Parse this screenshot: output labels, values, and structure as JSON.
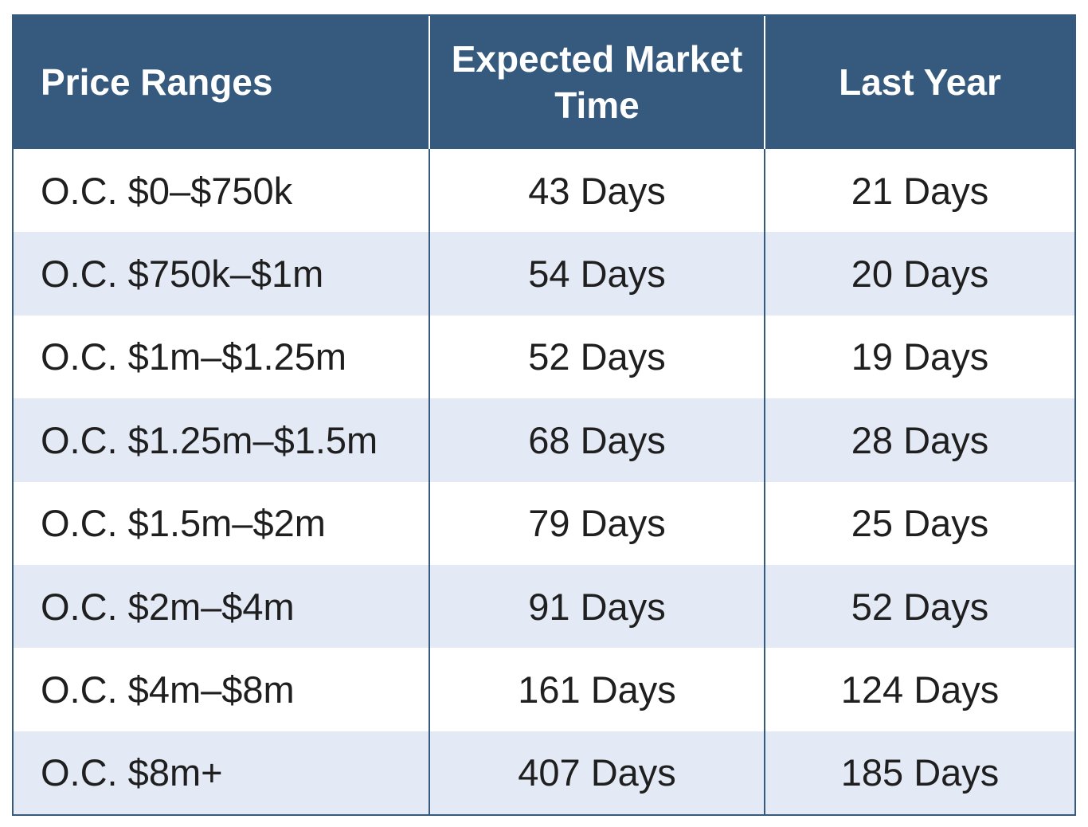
{
  "colors": {
    "header_bg": "#355a7e",
    "header_text": "#ffffff",
    "row_alt_bg": "#e3e9f5",
    "row_bg": "#ffffff",
    "border": "#355a7e"
  },
  "chart_data": {
    "type": "table",
    "columns": [
      "Price Ranges",
      "Expected Market Time",
      "Last Year"
    ],
    "rows": [
      [
        "O.C. $0–$750k",
        "43 Days",
        "21 Days"
      ],
      [
        "O.C. $750k–$1m",
        "54 Days",
        "20 Days"
      ],
      [
        "O.C. $1m–$1.25m",
        "52 Days",
        "19 Days"
      ],
      [
        "O.C. $1.25m–$1.5m",
        "68 Days",
        "28 Days"
      ],
      [
        "O.C. $1.5m–$2m",
        "79 Days",
        "25 Days"
      ],
      [
        "O.C. $2m–$4m",
        "91 Days",
        "52 Days"
      ],
      [
        "O.C. $4m–$8m",
        "161 Days",
        "124 Days"
      ],
      [
        "O.C. $8m+",
        "407 Days",
        "185 Days"
      ]
    ]
  }
}
